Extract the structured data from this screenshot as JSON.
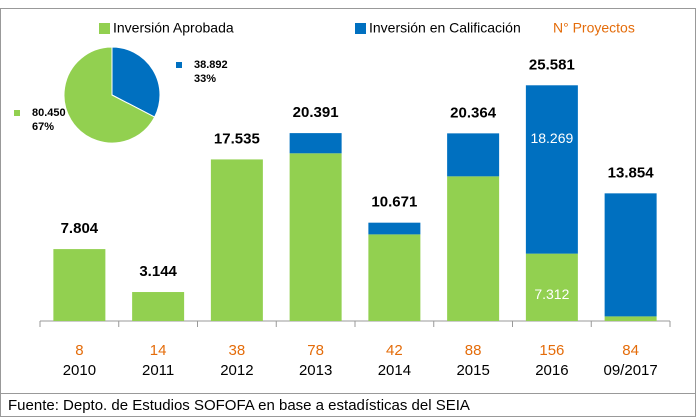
{
  "chart_data": {
    "type": "stacked-bar",
    "categories": [
      "2010",
      "2011",
      "2012",
      "2013",
      "2014",
      "2015",
      "2016",
      "09/2017"
    ],
    "series": [
      {
        "name": "Inversión Aprobada",
        "color": "#92d050",
        "values": [
          7804,
          3144,
          17535,
          18200,
          9400,
          15700,
          7312,
          500
        ],
        "value_labels": [
          null,
          null,
          null,
          null,
          null,
          null,
          "7.312",
          null
        ]
      },
      {
        "name": "Inversión en Calificación",
        "color": "#0070c0",
        "values": [
          0,
          0,
          0,
          2191,
          1271,
          4664,
          18269,
          13354
        ],
        "value_labels": [
          null,
          null,
          null,
          null,
          null,
          null,
          "18.269",
          null
        ]
      }
    ],
    "totals": {
      "values": [
        7804,
        3144,
        17535,
        20391,
        10671,
        20364,
        25581,
        13854
      ],
      "value_labels": [
        "7.804",
        "3.144",
        "17.535",
        "20.391",
        "10.671",
        "20.364",
        "25.581",
        "13.854"
      ]
    },
    "projects": {
      "name": "N°  Proyectos",
      "color": "#e46c0a",
      "values": [
        8,
        14,
        38,
        78,
        42,
        88,
        156,
        84
      ]
    },
    "ylim": [
      0,
      28000
    ],
    "pie": {
      "type": "pie",
      "values": [
        80450,
        38892
      ],
      "value_labels": [
        "80.450",
        "38.892"
      ],
      "percents": [
        67,
        33
      ],
      "percent_labels": [
        "67%",
        "33%"
      ],
      "colors": [
        "#92d050",
        "#0070c0"
      ]
    },
    "source": "Fuente: Depto. de Estudios SOFOFA en base a estadísticas del SEIA"
  }
}
